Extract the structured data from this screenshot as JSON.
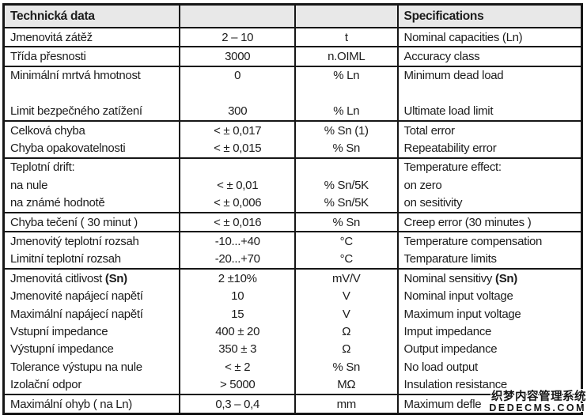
{
  "colors": {
    "background": "#ffffff",
    "border": "#161616",
    "header_background": "#e8e8e8",
    "text": "#1c1c1c"
  },
  "table": {
    "header": {
      "col1": "Technická data",
      "col2": "",
      "col3": "",
      "col4": "Specifications"
    },
    "rows": [
      {
        "param": "Jmenovitá zátěž",
        "value": "2 – 10",
        "unit": "t",
        "spec": "Nominal capacities (Ln)",
        "sep": true
      },
      {
        "param": "Třída přesnosti",
        "value": "3000",
        "unit": "n.OIML",
        "spec": "Accuracy class",
        "sep": true
      },
      {
        "param": "Minimální mrtvá hmotnost",
        "value": "0",
        "unit": "% Ln",
        "spec": "Minimum dead load",
        "sep": false
      },
      {
        "param": "",
        "value": "",
        "unit": "",
        "spec": "",
        "sep": false
      },
      {
        "param": "Limit bezpečného zatížení",
        "value": "300",
        "unit": "% Ln",
        "spec": "Ultimate load limit",
        "sep": true
      },
      {
        "param": "Celková chyba",
        "value": "< ± 0,017",
        "unit": "% Sn (1)",
        "spec": "Total error",
        "sep": false
      },
      {
        "param": "Chyba opakovatelnosti",
        "value": "< ± 0,015",
        "unit": "% Sn",
        "spec": "Repeatability error",
        "sep": true
      },
      {
        "param": "Teplotní drift:",
        "value": "",
        "unit": "",
        "spec": "Temperature effect:",
        "sep": false
      },
      {
        "param": "na nule",
        "value": "< ± 0,01",
        "unit": "% Sn/5K",
        "spec": "on zero",
        "sep": false
      },
      {
        "param": "na známé hodnotě",
        "value": "< ± 0,006",
        "unit": "% Sn/5K",
        "spec": "on sesitivity",
        "sep": true
      },
      {
        "param": "Chyba tečení ( 30 minut )",
        "value": "< ± 0,016",
        "unit": "% Sn",
        "spec": "Creep error (30 minutes )",
        "sep": true
      },
      {
        "param": "Jmenovitý teplotní rozsah",
        "value": "-10...+40",
        "unit": "°C",
        "spec": "Temperature compensation",
        "sep": false
      },
      {
        "param": "Limitní teplotní rozsah",
        "value": "-20...+70",
        "unit": "°C",
        "spec": "Temparature limits",
        "sep": true
      },
      {
        "param": {
          "pre": "Jmenovitá citlivost ",
          "bold": "(Sn)"
        },
        "value": "2 ±10%",
        "unit": "mV/V",
        "spec": {
          "pre": "Nominal sensitivy ",
          "bold": "(Sn)"
        },
        "sep": false
      },
      {
        "param": "Jmenovité napájecí napětí",
        "value": "10",
        "unit": "V",
        "spec": "Nominal input voltage",
        "sep": false
      },
      {
        "param": "Maximální napájecí napětí",
        "value": "15",
        "unit": "V",
        "spec": "Maximum input voltage",
        "sep": false
      },
      {
        "param": "Vstupní impedance",
        "value": "400 ± 20",
        "unit": "Ω",
        "spec": "Imput impedance",
        "sep": false
      },
      {
        "param": "Výstupní impedance",
        "value": "350 ± 3",
        "unit": "Ω",
        "spec": "Output impedance",
        "sep": false
      },
      {
        "param": "Tolerance výstupu na nule",
        "value": "< ± 2",
        "unit": "% Sn",
        "spec": "No load output",
        "sep": false
      },
      {
        "param": "Izolační odpor",
        "value": "> 5000",
        "unit": "MΩ",
        "spec": "Insulation resistance",
        "sep": true
      },
      {
        "param": "Maximální ohyb ( na Ln)",
        "value": "0,3 – 0,4",
        "unit": "mm",
        "spec": "Maximum defle",
        "sep": false
      }
    ]
  },
  "watermark": {
    "line1": "织梦内容管理系统",
    "line2": "DEDECMS.COM"
  }
}
